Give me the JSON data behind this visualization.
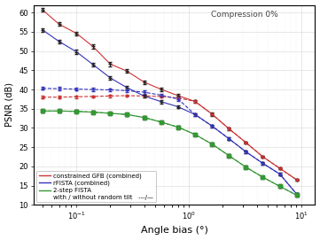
{
  "title_annotation": "Compression 0%",
  "xlabel": "Angle bias (°)",
  "ylabel": "PSNR (dB)",
  "ylim": [
    10,
    62
  ],
  "yticks": [
    10,
    15,
    20,
    25,
    30,
    35,
    40,
    45,
    50,
    55,
    60
  ],
  "x_points": [
    0.05,
    0.07,
    0.1,
    0.14,
    0.2,
    0.28,
    0.4,
    0.57,
    0.8,
    1.13,
    1.6,
    2.26,
    3.2,
    4.52,
    6.4,
    9.04
  ],
  "gfb_solid": [
    60.7,
    57.0,
    54.6,
    51.2,
    46.6,
    44.8,
    41.9,
    40.0,
    38.4,
    36.9,
    33.6,
    29.8,
    26.2,
    22.5,
    19.5,
    16.5
  ],
  "gfb_solid_err": [
    0.5,
    0.5,
    0.5,
    0.5,
    0.5,
    0.4,
    0.4,
    0.4,
    0.4,
    0.4,
    0.4,
    0.4,
    0.3,
    0.3,
    0.3,
    0.3
  ],
  "gfb_dashed": [
    38.0,
    38.0,
    38.1,
    38.2,
    38.3,
    38.4,
    38.3,
    38.2,
    37.8,
    36.9,
    33.6,
    29.8,
    26.2,
    22.5,
    19.5,
    16.5
  ],
  "gfb_dashed_err": [
    0.3,
    0.3,
    0.3,
    0.3,
    0.3,
    0.3,
    0.3,
    0.3,
    0.3,
    0.3,
    0.3,
    0.3,
    0.3,
    0.3,
    0.3,
    0.3
  ],
  "rfista_solid": [
    55.5,
    52.5,
    49.8,
    46.5,
    43.0,
    40.5,
    38.3,
    36.8,
    35.5,
    33.5,
    30.5,
    27.2,
    23.8,
    20.8,
    18.0,
    12.8
  ],
  "rfista_solid_err": [
    0.5,
    0.5,
    0.5,
    0.5,
    0.4,
    0.4,
    0.4,
    0.4,
    0.4,
    0.4,
    0.4,
    0.4,
    0.3,
    0.3,
    0.3,
    0.3
  ],
  "rfista_dashed": [
    40.3,
    40.2,
    40.1,
    40.0,
    39.9,
    39.7,
    39.3,
    38.5,
    37.5,
    33.5,
    30.5,
    27.2,
    23.8,
    20.8,
    18.0,
    12.8
  ],
  "rfista_dashed_err": [
    0.4,
    0.4,
    0.4,
    0.4,
    0.4,
    0.4,
    0.4,
    0.4,
    0.4,
    0.4,
    0.4,
    0.4,
    0.3,
    0.3,
    0.3,
    0.3
  ],
  "fista2_solid": [
    34.4,
    34.4,
    34.3,
    34.1,
    33.8,
    33.5,
    32.7,
    31.5,
    30.2,
    28.3,
    25.8,
    22.8,
    19.8,
    17.2,
    14.8,
    12.5
  ],
  "fista2_solid_err": [
    0.3,
    0.3,
    0.3,
    0.3,
    0.3,
    0.3,
    0.3,
    0.3,
    0.3,
    0.3,
    0.3,
    0.3,
    0.3,
    0.3,
    0.3,
    0.3
  ],
  "fista2_dashed": [
    34.4,
    34.4,
    34.3,
    34.1,
    33.8,
    33.5,
    32.7,
    31.5,
    30.2,
    28.3,
    25.8,
    22.8,
    19.8,
    17.2,
    14.8,
    12.5
  ],
  "fista2_dashed_err": [
    0.3,
    0.3,
    0.3,
    0.3,
    0.3,
    0.3,
    0.3,
    0.3,
    0.3,
    0.3,
    0.3,
    0.3,
    0.3,
    0.3,
    0.3,
    0.3
  ],
  "color_gfb": "#cc3333",
  "color_rfista": "#3333bb",
  "color_fista2": "#339933",
  "color_dark": "#222222",
  "bg_color": "#ffffff",
  "legend_labels": [
    "constrained GFB (combined)",
    "rFISTA (combined)",
    "2-step FISTA",
    "with / without random tilt"
  ],
  "fontsize": 7,
  "annotation_text": "Compression 0%"
}
